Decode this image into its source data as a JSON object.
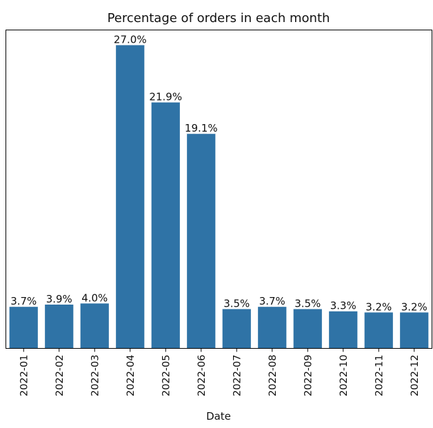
{
  "chart_data": {
    "type": "bar",
    "title": "Percentage of orders in each month",
    "xlabel": "Date",
    "ylabel": "",
    "categories": [
      "2022-01",
      "2022-02",
      "2022-03",
      "2022-04",
      "2022-05",
      "2022-06",
      "2022-07",
      "2022-08",
      "2022-09",
      "2022-10",
      "2022-11",
      "2022-12"
    ],
    "values": [
      3.7,
      3.9,
      4.0,
      27.0,
      21.9,
      19.1,
      3.5,
      3.7,
      3.5,
      3.3,
      3.2,
      3.2
    ],
    "value_labels": [
      "3.7%",
      "3.9%",
      "4.0%",
      "27.0%",
      "21.9%",
      "19.1%",
      "3.5%",
      "3.7%",
      "3.5%",
      "3.3%",
      "3.2%",
      "3.2%"
    ],
    "ylim": [
      0,
      28.35
    ],
    "bar_color": "#2f73a6",
    "grid": false,
    "y_ticks_visible": false
  }
}
